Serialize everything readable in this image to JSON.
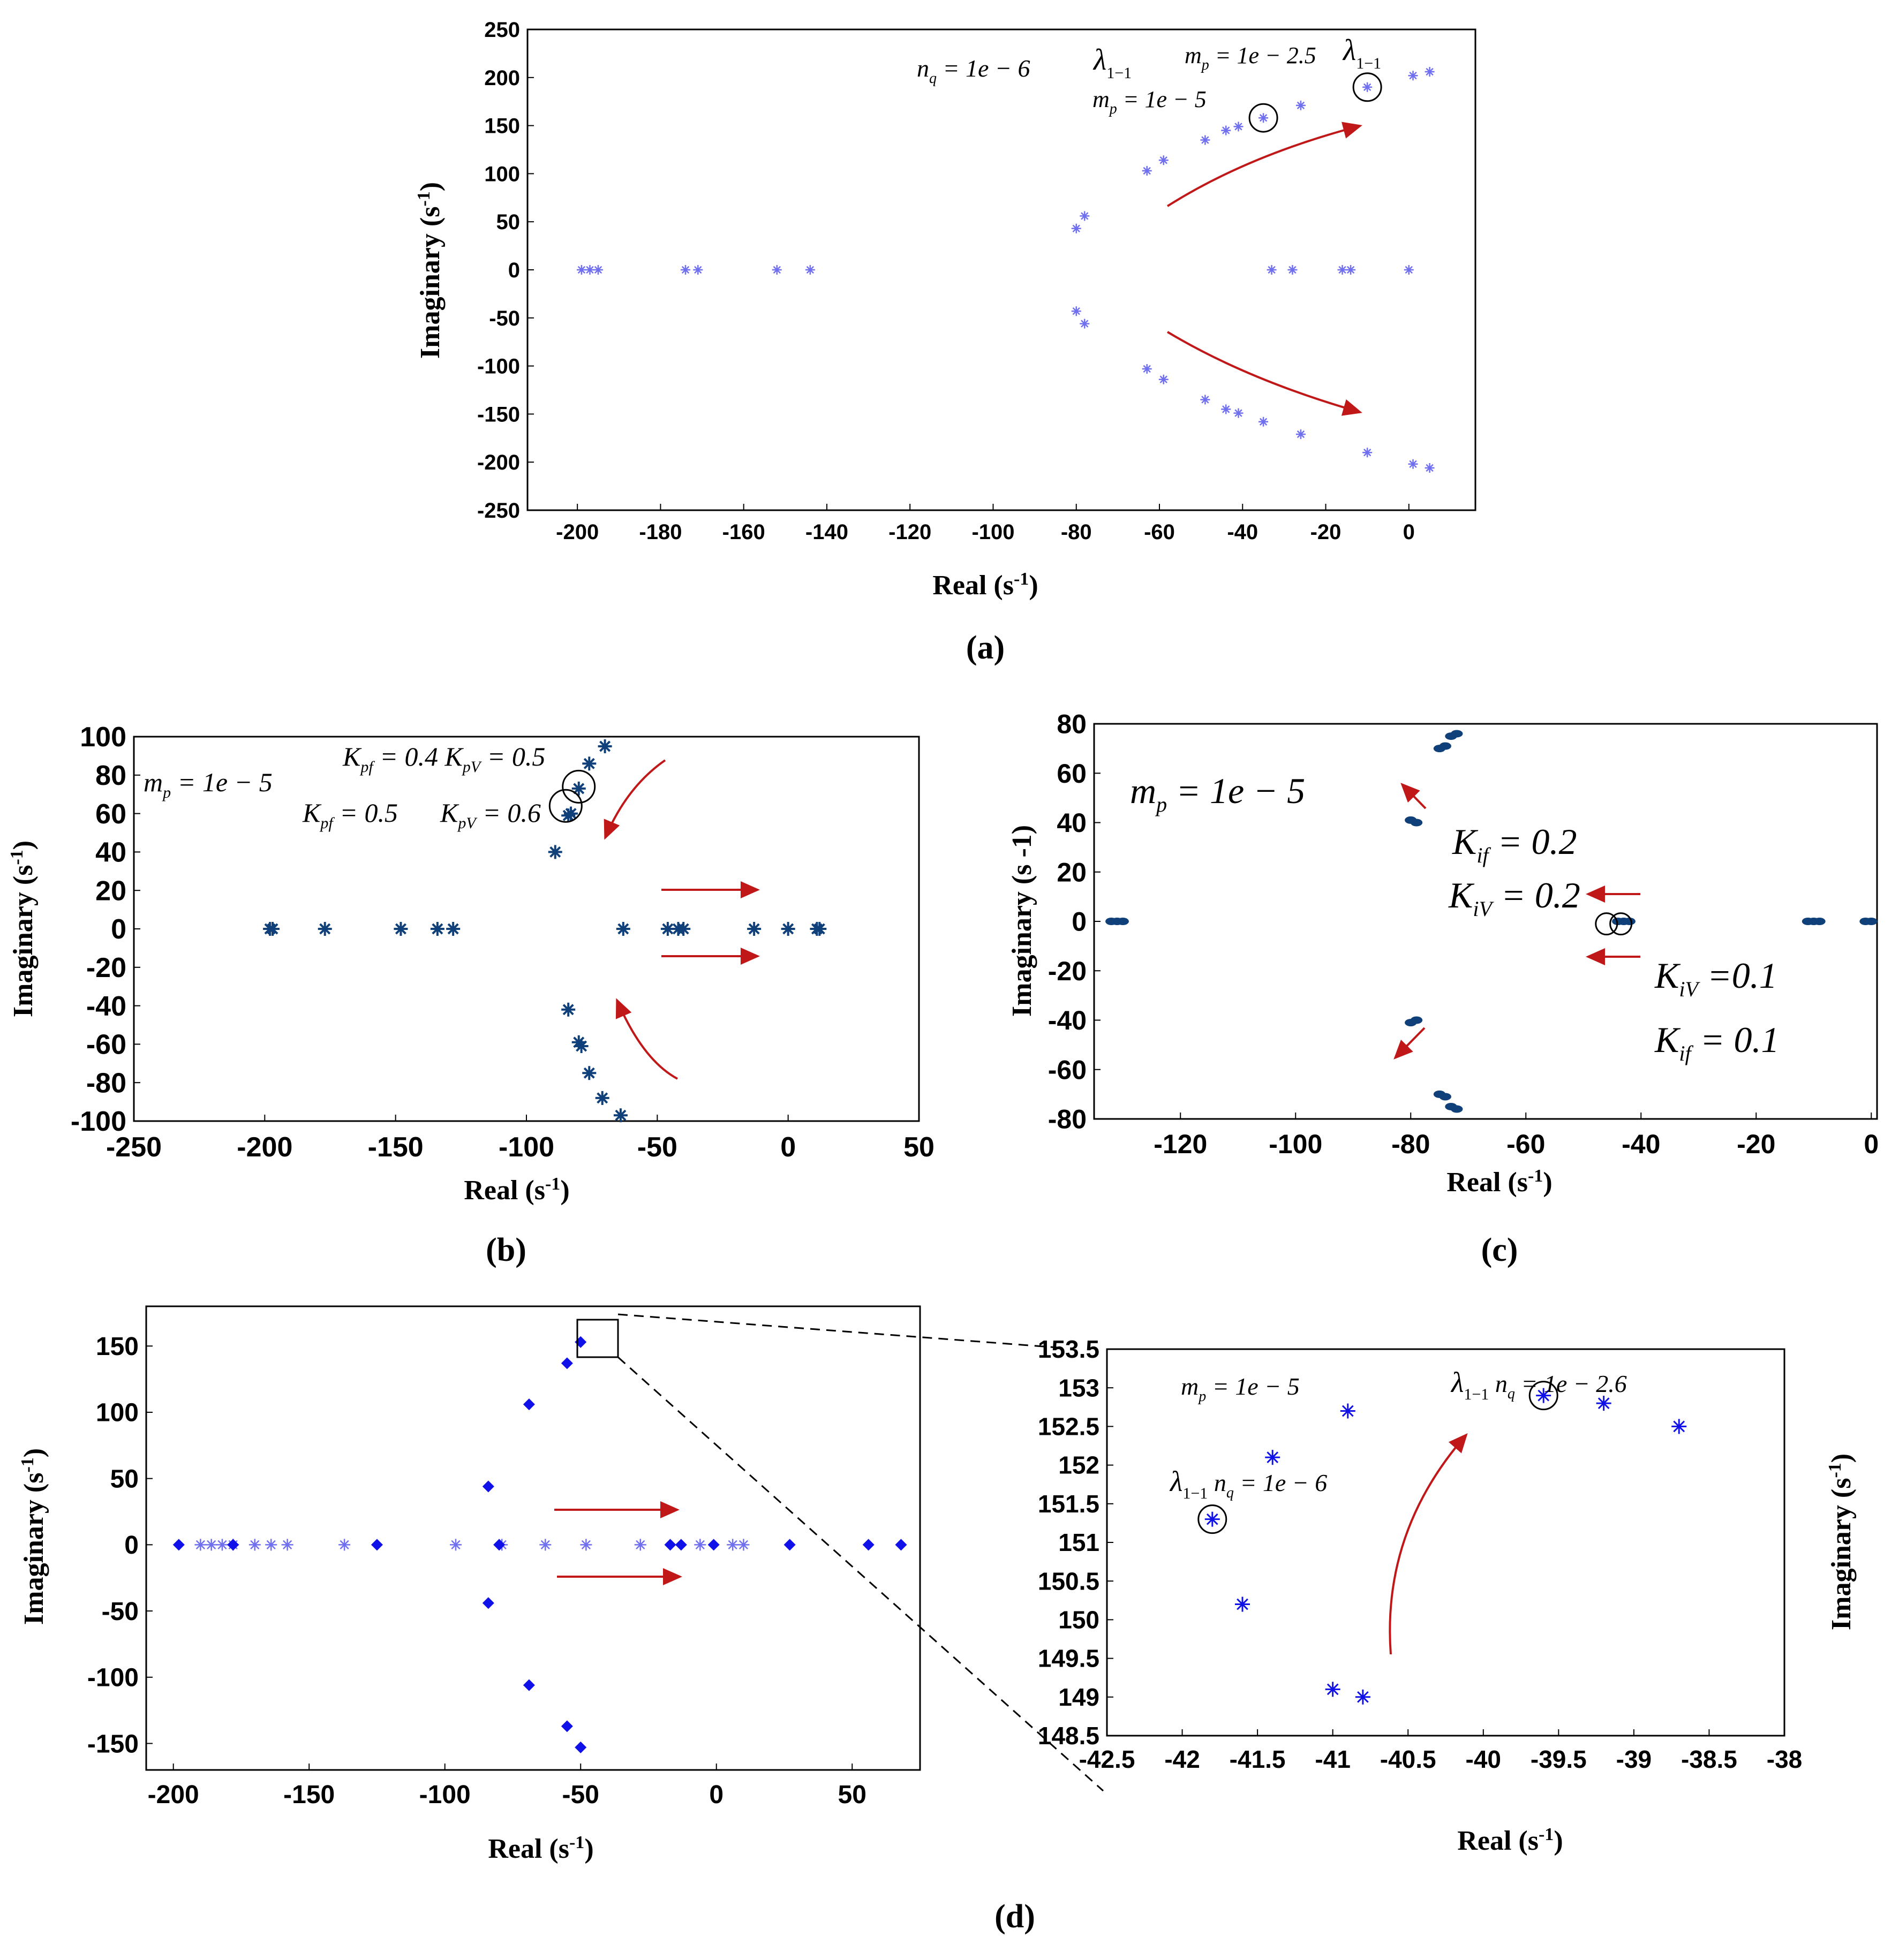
{
  "figure": {
    "panel_labels": [
      "(a)",
      "(b)",
      "(c)",
      "(d)"
    ],
    "colors": {
      "light": "#6f6ff0",
      "navy": "#10407a",
      "blue": "#1010e8",
      "arrow": "#c01818"
    }
  },
  "chart_data": [
    {
      "id": "a",
      "type": "scatter",
      "xlabel": "Real (s-1)",
      "ylabel": "Imaginary (s-1)",
      "xlim": [
        -212,
        16
      ],
      "ylim": [
        -250,
        250
      ],
      "xticks": [
        -200,
        -180,
        -160,
        -140,
        -120,
        -100,
        -80,
        -60,
        -40,
        -20,
        0
      ],
      "yticks": [
        -250,
        -200,
        -150,
        -100,
        -50,
        0,
        50,
        100,
        150,
        200,
        250
      ],
      "annotations": [
        "n_q = 1e-6",
        "λ_1-1",
        "m_p = 1e-5",
        "m_p = 1e-2.5",
        "λ_1-1"
      ],
      "series": [
        {
          "name": "eigenvalues",
          "marker": "star",
          "color": "light",
          "points": [
            [
              -199,
              0
            ],
            [
              -197,
              0
            ],
            [
              -195,
              0
            ],
            [
              -174,
              0
            ],
            [
              -171,
              0
            ],
            [
              -152,
              0
            ],
            [
              -144,
              0
            ],
            [
              -80,
              43
            ],
            [
              -78,
              56
            ],
            [
              -63,
              103
            ],
            [
              -59,
              114
            ],
            [
              -49,
              135
            ],
            [
              -44,
              145
            ],
            [
              -41,
              149
            ],
            [
              -35,
              158
            ],
            [
              -26,
              171
            ],
            [
              -10,
              190
            ],
            [
              1,
              202
            ],
            [
              5,
              206
            ],
            [
              -80,
              -43
            ],
            [
              -78,
              -56
            ],
            [
              -63,
              -103
            ],
            [
              -59,
              -114
            ],
            [
              -49,
              -135
            ],
            [
              -44,
              -145
            ],
            [
              -41,
              -149
            ],
            [
              -35,
              -158
            ],
            [
              -26,
              -171
            ],
            [
              -10,
              -190
            ],
            [
              1,
              -202
            ],
            [
              5,
              -206
            ],
            [
              -33,
              0
            ],
            [
              -28,
              0
            ],
            [
              -16,
              0
            ],
            [
              -14,
              0
            ],
            [
              0,
              0
            ]
          ]
        }
      ],
      "circles": [
        [
          -35,
          158
        ],
        [
          -10,
          190
        ]
      ]
    },
    {
      "id": "b",
      "type": "scatter",
      "xlabel": "Real (s-1)",
      "ylabel": "Imaginary (s-1)",
      "xlim": [
        -250,
        50
      ],
      "ylim": [
        -100,
        100
      ],
      "xticks": [
        -250,
        -200,
        -150,
        -100,
        -50,
        0,
        50
      ],
      "yticks": [
        -100,
        -80,
        -60,
        -40,
        -20,
        0,
        20,
        40,
        60,
        80,
        100
      ],
      "annotations": [
        "m_p = 1e-5",
        "K_pf = 0.4 K_pV = 0.5",
        "K_pf = 0.5",
        "K_pV = 0.6"
      ],
      "series": [
        {
          "name": "eigenvalues",
          "marker": "star",
          "color": "navy",
          "points": [
            [
              -198,
              0
            ],
            [
              -197,
              0
            ],
            [
              -177,
              0
            ],
            [
              -148,
              0
            ],
            [
              -134,
              0
            ],
            [
              -128,
              0
            ],
            [
              -63,
              0
            ],
            [
              -46,
              0
            ],
            [
              -42,
              0
            ],
            [
              -40,
              0
            ],
            [
              -13,
              0
            ],
            [
              0,
              0
            ],
            [
              11,
              0
            ],
            [
              12,
              0
            ],
            [
              -89,
              40
            ],
            [
              -84,
              59
            ],
            [
              -83,
              60
            ],
            [
              -80,
              73
            ],
            [
              -76,
              86
            ],
            [
              -70,
              95
            ],
            [
              -84,
              -42
            ],
            [
              -80,
              -59
            ],
            [
              -79,
              -61
            ],
            [
              -76,
              -75
            ],
            [
              -71,
              -88
            ],
            [
              -64,
              -97
            ]
          ]
        }
      ],
      "circles": [
        [
          -85,
          64
        ],
        [
          -80,
          74
        ]
      ]
    },
    {
      "id": "c",
      "type": "scatter",
      "xlabel": "Real (s-1)",
      "ylabel": "Imaginary (s -1)",
      "xlim": [
        -135,
        1
      ],
      "ylim": [
        -80,
        80
      ],
      "xticks": [
        -120,
        -100,
        -80,
        -60,
        -40,
        -20,
        0
      ],
      "yticks": [
        -80,
        -60,
        -40,
        -20,
        0,
        20,
        40,
        60,
        80
      ],
      "annotations": [
        "m_p = 1e-5",
        "K_if = 0.2",
        "K_iV = 0.2",
        "K_iV = 0.1",
        "K_if = 0.1"
      ],
      "series": [
        {
          "name": "eigenvalues",
          "marker": "dot",
          "color": "navy",
          "points": [
            [
              -132,
              0
            ],
            [
              -131,
              0
            ],
            [
              -130,
              0
            ],
            [
              -80,
              41
            ],
            [
              -79,
              40
            ],
            [
              -80,
              -41
            ],
            [
              -79,
              -40
            ],
            [
              -75,
              70
            ],
            [
              -74,
              71
            ],
            [
              -75,
              -70
            ],
            [
              -74,
              -71
            ],
            [
              -73,
              75
            ],
            [
              -72,
              76
            ],
            [
              -73,
              -75
            ],
            [
              -72,
              -76
            ],
            [
              -44,
              0
            ],
            [
              -43,
              0
            ],
            [
              -42,
              0
            ],
            [
              -11,
              0
            ],
            [
              -10,
              0
            ],
            [
              -9,
              0
            ],
            [
              -1,
              0
            ],
            [
              0,
              0
            ]
          ]
        }
      ],
      "circles": [
        [
          -46,
          -1
        ],
        [
          -43.5,
          -1
        ]
      ]
    },
    {
      "id": "d-main",
      "type": "scatter",
      "xlabel": "Real (s-1)",
      "ylabel": "Imaginary (s-1)",
      "xlim": [
        -210,
        75
      ],
      "ylim": [
        -170,
        180
      ],
      "xticks": [
        -200,
        -150,
        -100,
        -50,
        0,
        50
      ],
      "yticks": [
        -150,
        -100,
        -50,
        0,
        50,
        100,
        150
      ],
      "series": [
        {
          "name": "light",
          "marker": "star",
          "color": "light",
          "points": [
            [
              -190,
              0
            ],
            [
              -186,
              0
            ],
            [
              -182,
              0
            ],
            [
              -178,
              0
            ],
            [
              -170,
              0
            ],
            [
              -164,
              0
            ],
            [
              -158,
              0
            ],
            [
              -137,
              0
            ],
            [
              -96,
              0
            ],
            [
              -79,
              0
            ],
            [
              -63,
              0
            ],
            [
              -48,
              0
            ],
            [
              -28,
              0
            ],
            [
              -6,
              0
            ],
            [
              6,
              0
            ],
            [
              10,
              0
            ]
          ]
        },
        {
          "name": "dark",
          "marker": "diamond",
          "color": "blue",
          "points": [
            [
              -198,
              0
            ],
            [
              -178,
              0
            ],
            [
              -125,
              0
            ],
            [
              -80,
              0
            ],
            [
              -17,
              0
            ],
            [
              -13,
              0
            ],
            [
              -1,
              0
            ],
            [
              27,
              0
            ],
            [
              56,
              0
            ],
            [
              68,
              0
            ],
            [
              -84,
              44
            ],
            [
              -84,
              -44
            ],
            [
              -69,
              106
            ],
            [
              -69,
              -106
            ],
            [
              -55,
              137
            ],
            [
              -55,
              -137
            ],
            [
              -50,
              153
            ],
            [
              -50,
              -153
            ]
          ]
        }
      ]
    },
    {
      "id": "d-zoom",
      "type": "scatter",
      "xlabel": "Real (s-1)",
      "ylabel": "Imaginary (s-1)",
      "xlim": [
        -42.5,
        -38
      ],
      "ylim": [
        148.5,
        153.5
      ],
      "xticks": [
        -42.5,
        -42,
        -41.5,
        -41,
        -40.5,
        -40,
        -39.5,
        -39,
        -38.5,
        -38
      ],
      "yticks": [
        148.5,
        149,
        149.5,
        150,
        150.5,
        151,
        151.5,
        152,
        152.5,
        153,
        153.5
      ],
      "annotations": [
        "m_p = 1e-5",
        "λ_1-1 n_q = 1e-2.6",
        "λ_1-1 n_q = 1e-6"
      ],
      "series": [
        {
          "name": "eigenvalues",
          "marker": "star",
          "color": "blue",
          "points": [
            [
              -41.8,
              151.3
            ],
            [
              -41.6,
              150.2
            ],
            [
              -41.4,
              152.1
            ],
            [
              -41.0,
              149.1
            ],
            [
              -40.8,
              149.0
            ],
            [
              -40.9,
              152.7
            ],
            [
              -39.6,
              152.9
            ],
            [
              -39.2,
              152.8
            ],
            [
              -38.7,
              152.5
            ]
          ]
        }
      ],
      "circles": [
        [
          -41.8,
          151.3
        ],
        [
          -39.6,
          152.9
        ]
      ]
    }
  ]
}
